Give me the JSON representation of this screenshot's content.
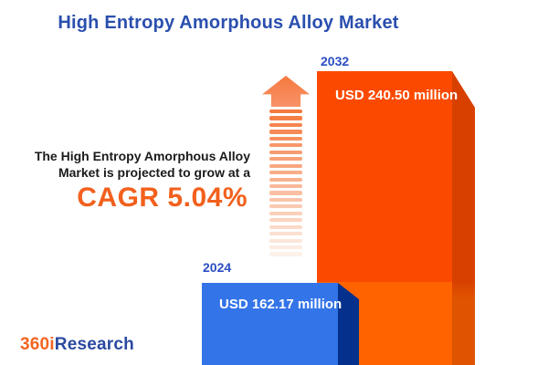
{
  "title": "High Entropy Amorphous Alloy Market",
  "description": {
    "line1": "The High Entropy Amorphous Alloy",
    "line2": "Market is projected to grow at a",
    "cagr": "CAGR 5.04%"
  },
  "logo": {
    "part1": "360i",
    "part2": "Research"
  },
  "bars": [
    {
      "year": "2024",
      "label": "USD 162.17 million",
      "value": 162.17
    },
    {
      "year": "2032",
      "label": "USD 240.50 million",
      "value": 240.5
    }
  ],
  "arrow": {
    "stripe_count": 22
  },
  "colors": {
    "title_blue": "#2A4FAE",
    "year_blue": "#2B4DC2",
    "cagr_orange": "#F2601D",
    "text_dark": "#1B1B1B",
    "label_white": "#FFFFFF",
    "bar_2024_face": "#3374E8",
    "bar_2024_side": "#05318C",
    "bar_2032_face_upper": "#FB4A00",
    "bar_2032_face_lower": "#FF6300",
    "bar_2032_side_upper": "#D84000",
    "bar_2032_side_lower": "#DF5400",
    "arrow_head": "#F5793F",
    "arrow_head_light": "#F89268",
    "arrow_stripe_start": "#F5793F",
    "arrow_stripe_end": "#FDF1EA",
    "logo_orange": "#F26522",
    "logo_blue": "#2B4AA0"
  },
  "chart_data": {
    "type": "bar",
    "title": "High Entropy Amorphous Alloy Market",
    "categories": [
      "2024",
      "2032"
    ],
    "values": [
      162.17,
      240.5
    ],
    "unit": "USD million",
    "value_labels": [
      "USD 162.17 million",
      "USD 240.50 million"
    ],
    "annotation": "The High Entropy Amorphous Alloy Market is projected to grow at a CAGR 5.04%",
    "cagr_percent": 5.04,
    "series_colors": [
      "#3374E8",
      "#FB4A00"
    ],
    "legend": false,
    "axes": false,
    "style": "3d-bars-with-growth-arrow"
  }
}
